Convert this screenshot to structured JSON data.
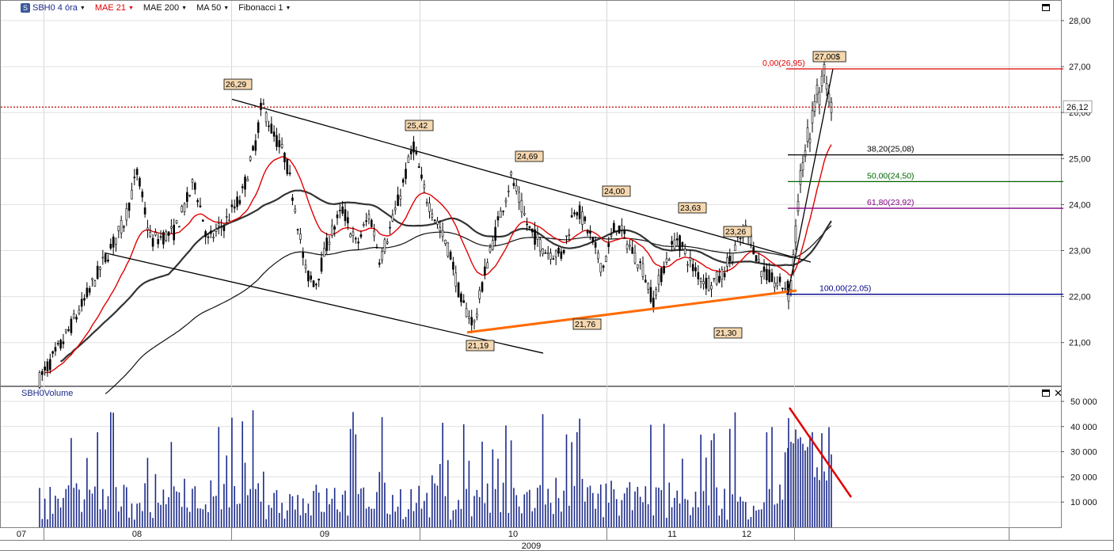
{
  "toolbar": {
    "symbol": "SBH0 4 óra",
    "mae21": "MAE 21",
    "mae200": "MAE 200",
    "ma50": "MA 50",
    "fibonacci": "Fibonacci 1"
  },
  "volume_panel": {
    "label": "SBH0Volume"
  },
  "colors": {
    "candle": "#000000",
    "mae21": "#e00000",
    "mae200": "#111111",
    "ma50": "#333333",
    "trend_support": "#ff6a00",
    "volume_bar": "#1b2a8a",
    "volume_trend": "#e00000",
    "last_price_line": "#c00000",
    "price_label_bg": "#f5d8b0"
  },
  "chart_data": [
    {
      "type": "candlestick",
      "y_axis": {
        "ylim": [
          20.0,
          28.3
        ],
        "ticks": [
          "28,00",
          "27,00",
          "26,00",
          "25,00",
          "24,00",
          "23,00",
          "22,00",
          "21,00"
        ],
        "position": "right"
      },
      "x_axis": {
        "month_labels": [
          "07",
          "08",
          "09",
          "10",
          "11",
          "12"
        ],
        "year_label": "2009"
      },
      "last_price": {
        "value": 26.12,
        "label": "26,12"
      },
      "series": [
        {
          "name": "MAE 21",
          "color": "#e00000"
        },
        {
          "name": "MAE 200",
          "color": "#111111"
        },
        {
          "name": "MA 50",
          "color": "#333333"
        }
      ],
      "key_levels": [
        {
          "label": "26,29",
          "value": 26.29
        },
        {
          "label": "25,42",
          "value": 25.42
        },
        {
          "label": "24,69",
          "value": 24.69
        },
        {
          "label": "24,00",
          "value": 24.0
        },
        {
          "label": "23,63",
          "value": 23.63
        },
        {
          "label": "23,26",
          "value": 23.26
        },
        {
          "label": "21,19",
          "value": 21.19
        },
        {
          "label": "21,76",
          "value": 21.76
        },
        {
          "label": "21,30",
          "value": 21.3
        },
        {
          "label": "27,00$",
          "value": 27.0
        }
      ],
      "fibonacci": [
        {
          "label": "0,00(26,95)",
          "value": 26.95,
          "color": "#e00000"
        },
        {
          "label": "38,20(25,08)",
          "value": 25.08,
          "color": "#000000"
        },
        {
          "label": "50,00(24,50)",
          "value": 24.5,
          "color": "#006400"
        },
        {
          "label": "61,80(23,92)",
          "value": 23.92,
          "color": "#800080"
        },
        {
          "label": "100,00(22,05)",
          "value": 22.05,
          "color": "#00008b"
        }
      ],
      "trendlines": [
        {
          "name": "channel-upper",
          "color": "#000000"
        },
        {
          "name": "channel-lower",
          "color": "#000000"
        },
        {
          "name": "support",
          "color": "#ff6a00"
        }
      ]
    },
    {
      "type": "bar",
      "title": "SBH0Volume",
      "y_axis": {
        "ylim": [
          0,
          56000
        ],
        "ticks": [
          "50 000",
          "40 000",
          "30 000",
          "20 000",
          "10 000"
        ]
      },
      "trendline": {
        "name": "volume-decline",
        "color": "#e00000"
      }
    }
  ]
}
